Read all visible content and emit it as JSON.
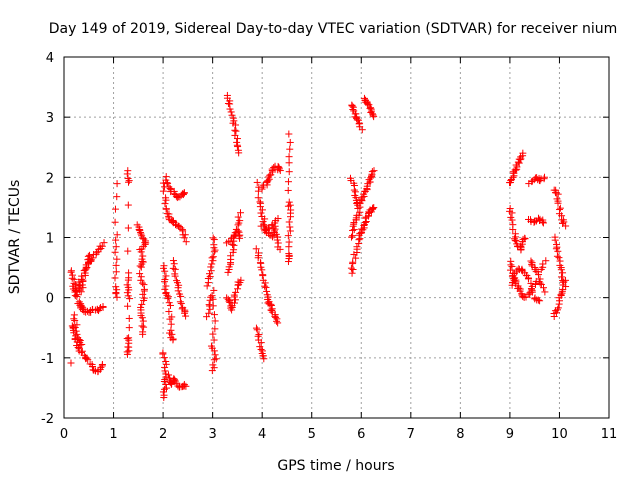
{
  "chart_data": {
    "type": "scatter",
    "title": "Day 149 of 2019, Sidereal Day-to-day VTEC variation (SDTVAR) for receiver nium",
    "xlabel": "GPS time / hours",
    "ylabel": "SDTVAR / TECUs",
    "xlim": [
      0,
      11
    ],
    "ylim": [
      -2,
      4
    ],
    "x_ticks": [
      0,
      1,
      2,
      3,
      4,
      5,
      6,
      7,
      8,
      9,
      10,
      11
    ],
    "y_ticks": [
      -2,
      -1,
      0,
      1,
      2,
      3,
      4
    ],
    "x_tick_labels": [
      "0",
      "1",
      "2",
      "3",
      "4",
      "5",
      "6",
      "7",
      "8",
      "9",
      "10",
      "11"
    ],
    "y_tick_labels": [
      "-2",
      "-1",
      "0",
      "1",
      "2",
      "3",
      "4"
    ],
    "grid": true,
    "marker": "+",
    "marker_color": "#ff0000",
    "series": [
      {
        "name": "SDTVAR",
        "tracks": [
          [
            [
              0.15,
              0.45
            ],
            [
              0.2,
              0.3
            ],
            [
              0.25,
              0.1
            ],
            [
              0.3,
              -0.1
            ],
            [
              0.35,
              -0.15
            ],
            [
              0.4,
              -0.2
            ],
            [
              0.5,
              -0.25
            ],
            [
              0.6,
              -0.2
            ],
            [
              0.7,
              -0.2
            ],
            [
              0.8,
              -0.15
            ]
          ],
          [
            [
              0.15,
              -0.45
            ],
            [
              0.2,
              -0.55
            ],
            [
              0.25,
              -0.7
            ],
            [
              0.3,
              -0.85
            ],
            [
              0.4,
              -0.95
            ],
            [
              0.5,
              -1.05
            ],
            [
              0.6,
              -1.2
            ],
            [
              0.7,
              -1.25
            ],
            [
              0.8,
              -1.1
            ]
          ],
          [
            [
              0.18,
              0.2
            ],
            [
              0.25,
              0.05
            ],
            [
              0.3,
              0.15
            ],
            [
              0.4,
              0.45
            ],
            [
              0.5,
              0.6
            ],
            [
              0.6,
              0.7
            ],
            [
              0.7,
              0.8
            ],
            [
              0.8,
              0.9
            ]
          ],
          [
            [
              0.2,
              -0.3
            ],
            [
              0.25,
              -0.5
            ],
            [
              0.3,
              -0.7
            ],
            [
              0.35,
              -0.8
            ]
          ],
          [
            [
              0.3,
              0.25
            ],
            [
              0.35,
              0.1
            ],
            [
              0.4,
              0.3
            ],
            [
              0.45,
              0.5
            ],
            [
              0.5,
              0.7
            ],
            [
              0.55,
              0.6
            ]
          ],
          [
            [
              0.15,
              -1.1
            ]
          ],
          [
            [
              1.05,
              1.9
            ],
            [
              1.05,
              1.05
            ],
            [
              1.05,
              0.65
            ],
            [
              1.05,
              0.2
            ],
            [
              1.05,
              0.0
            ]
          ],
          [
            [
              1.3,
              2.1
            ],
            [
              1.3,
              1.9
            ],
            [
              1.3,
              0.4
            ],
            [
              1.3,
              0.15
            ],
            [
              1.3,
              0.0
            ],
            [
              1.3,
              -0.65
            ],
            [
              1.3,
              -0.8
            ],
            [
              1.3,
              -0.95
            ]
          ],
          [
            [
              1.5,
              1.2
            ],
            [
              1.55,
              1.1
            ],
            [
              1.6,
              1.0
            ],
            [
              1.65,
              0.9
            ],
            [
              1.55,
              0.8
            ],
            [
              1.6,
              0.6
            ],
            [
              1.55,
              0.5
            ]
          ],
          [
            [
              1.55,
              0.4
            ],
            [
              1.6,
              0.2
            ],
            [
              1.6,
              0.0
            ],
            [
              1.55,
              -0.2
            ],
            [
              1.6,
              -0.4
            ],
            [
              1.6,
              -0.6
            ]
          ],
          [
            [
              2.0,
              1.9
            ],
            [
              2.05,
              1.6
            ],
            [
              2.1,
              1.4
            ],
            [
              2.15,
              1.3
            ],
            [
              2.2,
              1.25
            ],
            [
              2.3,
              1.2
            ],
            [
              2.4,
              1.1
            ],
            [
              2.45,
              0.95
            ]
          ],
          [
            [
              2.05,
              2.0
            ],
            [
              2.1,
              1.85
            ],
            [
              2.2,
              1.75
            ],
            [
              2.3,
              1.65
            ],
            [
              2.4,
              1.7
            ],
            [
              2.45,
              1.75
            ]
          ],
          [
            [
              2.0,
              0.55
            ],
            [
              2.05,
              0.3
            ],
            [
              2.05,
              0.1
            ],
            [
              2.1,
              0.0
            ],
            [
              2.15,
              -0.3
            ],
            [
              2.15,
              -0.6
            ],
            [
              2.2,
              -0.7
            ]
          ],
          [
            [
              2.2,
              0.6
            ],
            [
              2.25,
              0.4
            ],
            [
              2.3,
              0.2
            ],
            [
              2.35,
              0.0
            ],
            [
              2.4,
              -0.2
            ],
            [
              2.45,
              -0.3
            ]
          ],
          [
            [
              2.0,
              -0.9
            ],
            [
              2.05,
              -1.1
            ],
            [
              2.05,
              -1.3
            ],
            [
              2.05,
              -1.5
            ],
            [
              2.0,
              -1.65
            ]
          ],
          [
            [
              2.1,
              -1.3
            ],
            [
              2.15,
              -1.45
            ],
            [
              2.2,
              -1.35
            ],
            [
              2.3,
              -1.45
            ],
            [
              2.4,
              -1.5
            ],
            [
              2.45,
              -1.45
            ]
          ],
          [
            [
              2.9,
              0.2
            ],
            [
              2.95,
              0.4
            ],
            [
              3.0,
              0.6
            ],
            [
              3.05,
              0.8
            ],
            [
              3.0,
              1.0
            ]
          ],
          [
            [
              2.9,
              -0.3
            ],
            [
              2.95,
              -0.1
            ],
            [
              3.0,
              0.1
            ],
            [
              3.05,
              -0.4
            ],
            [
              3.0,
              -0.8
            ],
            [
              3.05,
              -1.0
            ],
            [
              3.0,
              -1.2
            ]
          ],
          [
            [
              3.3,
              3.35
            ],
            [
              3.35,
              3.2
            ],
            [
              3.4,
              3.0
            ],
            [
              3.45,
              2.8
            ],
            [
              3.5,
              2.6
            ],
            [
              3.55,
              2.4
            ]
          ],
          [
            [
              3.3,
              0.4
            ],
            [
              3.35,
              0.6
            ],
            [
              3.4,
              0.8
            ],
            [
              3.45,
              1.0
            ],
            [
              3.5,
              1.2
            ],
            [
              3.55,
              1.4
            ]
          ],
          [
            [
              3.3,
              0.0
            ],
            [
              3.35,
              -0.1
            ],
            [
              3.4,
              -0.2
            ],
            [
              3.45,
              0.0
            ],
            [
              3.5,
              0.2
            ],
            [
              3.55,
              0.3
            ]
          ],
          [
            [
              3.3,
              0.9
            ],
            [
              3.4,
              1.0
            ],
            [
              3.5,
              1.1
            ],
            [
              3.55,
              1.0
            ]
          ],
          [
            [
              3.9,
              1.9
            ],
            [
              3.95,
              1.6
            ],
            [
              4.0,
              1.4
            ],
            [
              4.05,
              1.2
            ],
            [
              4.1,
              1.1
            ],
            [
              4.2,
              1.0
            ],
            [
              4.25,
              1.15
            ],
            [
              4.3,
              1.3
            ]
          ],
          [
            [
              3.9,
              0.8
            ],
            [
              3.95,
              0.6
            ],
            [
              4.0,
              0.4
            ],
            [
              4.05,
              0.2
            ],
            [
              4.1,
              0.0
            ],
            [
              4.15,
              -0.1
            ],
            [
              4.2,
              -0.2
            ],
            [
              4.25,
              -0.3
            ],
            [
              4.3,
              -0.4
            ]
          ],
          [
            [
              3.9,
              -0.5
            ],
            [
              3.95,
              -0.7
            ],
            [
              4.0,
              -0.9
            ],
            [
              4.05,
              -1.0
            ]
          ],
          [
            [
              4.0,
              1.8
            ],
            [
              4.1,
              1.9
            ],
            [
              4.15,
              2.0
            ],
            [
              4.2,
              2.1
            ],
            [
              4.3,
              2.2
            ],
            [
              4.35,
              2.1
            ]
          ],
          [
            [
              4.0,
              1.2
            ],
            [
              4.1,
              1.1
            ],
            [
              4.2,
              1.2
            ],
            [
              4.3,
              1.0
            ],
            [
              4.35,
              0.8
            ]
          ],
          [
            [
              4.55,
              2.7
            ],
            [
              4.55,
              2.25
            ],
            [
              4.55,
              1.6
            ],
            [
              4.55,
              1.4
            ],
            [
              4.55,
              1.1
            ],
            [
              4.55,
              0.75
            ],
            [
              4.55,
              0.6
            ]
          ],
          [
            [
              5.8,
              3.2
            ],
            [
              5.85,
              3.1
            ],
            [
              5.9,
              3.0
            ],
            [
              5.95,
              2.95
            ],
            [
              6.0,
              2.8
            ]
          ],
          [
            [
              6.05,
              3.3
            ],
            [
              6.1,
              3.25
            ],
            [
              6.15,
              3.2
            ],
            [
              6.2,
              3.1
            ],
            [
              6.25,
              3.0
            ]
          ],
          [
            [
              5.8,
              2.0
            ],
            [
              5.85,
              1.8
            ],
            [
              5.9,
              1.6
            ],
            [
              5.95,
              1.5
            ],
            [
              6.0,
              1.6
            ],
            [
              6.05,
              1.7
            ],
            [
              6.1,
              1.8
            ],
            [
              6.15,
              1.9
            ],
            [
              6.2,
              2.0
            ],
            [
              6.25,
              2.1
            ]
          ],
          [
            [
              5.8,
              0.4
            ],
            [
              5.85,
              0.6
            ],
            [
              5.9,
              0.8
            ],
            [
              5.95,
              1.0
            ],
            [
              6.0,
              1.1
            ],
            [
              6.05,
              1.2
            ],
            [
              6.1,
              1.3
            ],
            [
              6.15,
              1.4
            ],
            [
              6.2,
              1.45
            ],
            [
              6.25,
              1.5
            ]
          ],
          [
            [
              5.8,
              1.0
            ],
            [
              5.85,
              1.2
            ],
            [
              5.9,
              1.3
            ],
            [
              5.95,
              1.4
            ]
          ],
          [
            [
              9.0,
              1.9
            ],
            [
              9.05,
              2.0
            ],
            [
              9.1,
              2.1
            ],
            [
              9.15,
              2.2
            ],
            [
              9.2,
              2.3
            ],
            [
              9.25,
              2.4
            ]
          ],
          [
            [
              9.0,
              1.5
            ],
            [
              9.05,
              1.3
            ],
            [
              9.1,
              1.0
            ],
            [
              9.15,
              0.9
            ],
            [
              9.2,
              0.8
            ],
            [
              9.25,
              0.9
            ],
            [
              9.3,
              1.0
            ]
          ],
          [
            [
              9.0,
              0.6
            ],
            [
              9.05,
              0.4
            ],
            [
              9.1,
              0.3
            ],
            [
              9.15,
              0.2
            ],
            [
              9.2,
              0.1
            ],
            [
              9.3,
              0.0
            ],
            [
              9.4,
              0.1
            ],
            [
              9.5,
              0.2
            ],
            [
              9.6,
              0.3
            ],
            [
              9.7,
              0.1
            ]
          ],
          [
            [
              9.05,
              0.2
            ],
            [
              9.1,
              0.4
            ],
            [
              9.2,
              0.5
            ],
            [
              9.3,
              0.4
            ],
            [
              9.4,
              0.3
            ],
            [
              9.5,
              0.0
            ],
            [
              9.6,
              -0.05
            ]
          ],
          [
            [
              9.4,
              1.9
            ],
            [
              9.5,
              2.0
            ],
            [
              9.6,
              1.95
            ],
            [
              9.7,
              2.0
            ]
          ],
          [
            [
              9.4,
              1.3
            ],
            [
              9.5,
              1.25
            ],
            [
              9.6,
              1.3
            ],
            [
              9.7,
              1.25
            ]
          ],
          [
            [
              9.4,
              0.6
            ],
            [
              9.5,
              0.5
            ],
            [
              9.6,
              0.4
            ],
            [
              9.7,
              0.6
            ]
          ],
          [
            [
              9.9,
              1.8
            ],
            [
              9.95,
              1.7
            ],
            [
              10.0,
              1.5
            ],
            [
              10.05,
              1.3
            ],
            [
              10.1,
              1.2
            ]
          ],
          [
            [
              9.9,
              1.0
            ],
            [
              9.95,
              0.8
            ],
            [
              10.0,
              0.6
            ],
            [
              10.05,
              0.4
            ],
            [
              10.1,
              0.2
            ]
          ],
          [
            [
              9.9,
              -0.3
            ],
            [
              9.95,
              -0.2
            ],
            [
              10.0,
              0.0
            ],
            [
              10.05,
              0.1
            ],
            [
              10.1,
              0.3
            ]
          ]
        ]
      }
    ]
  }
}
